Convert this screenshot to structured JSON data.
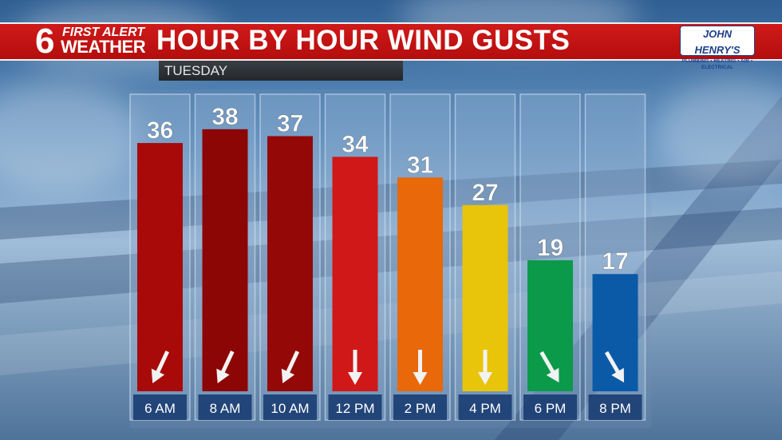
{
  "header": {
    "logo_number": "6",
    "logo_line1": "FIRST ALERT",
    "logo_line2": "WEATHER",
    "title": "HOUR BY HOUR WIND GUSTS",
    "sponsor": "JOHN HENRY'S",
    "sponsor_sub": "PLUMBING • HEATING • AIR • ELECTRICAL"
  },
  "day_label": "TUESDAY",
  "chart_data": {
    "type": "bar",
    "categories": [
      "6 AM",
      "8 AM",
      "10 AM",
      "12 PM",
      "2 PM",
      "4 PM",
      "6 PM",
      "8 PM"
    ],
    "values": [
      36,
      38,
      37,
      34,
      31,
      27,
      19,
      17
    ],
    "bar_colors": [
      "#a80a0a",
      "#8c0606",
      "#940808",
      "#d01818",
      "#e8680a",
      "#e8c40a",
      "#0a9a4a",
      "#0a5aa8"
    ],
    "wind_direction_arrows": [
      "southwest",
      "southwest",
      "southwest",
      "south",
      "south",
      "south",
      "southeast",
      "southeast"
    ],
    "arrow_angles_deg": [
      25,
      25,
      25,
      0,
      0,
      0,
      -30,
      -30
    ],
    "ylim": [
      0,
      44
    ],
    "grid": false,
    "xlabel": "",
    "ylabel": ""
  }
}
